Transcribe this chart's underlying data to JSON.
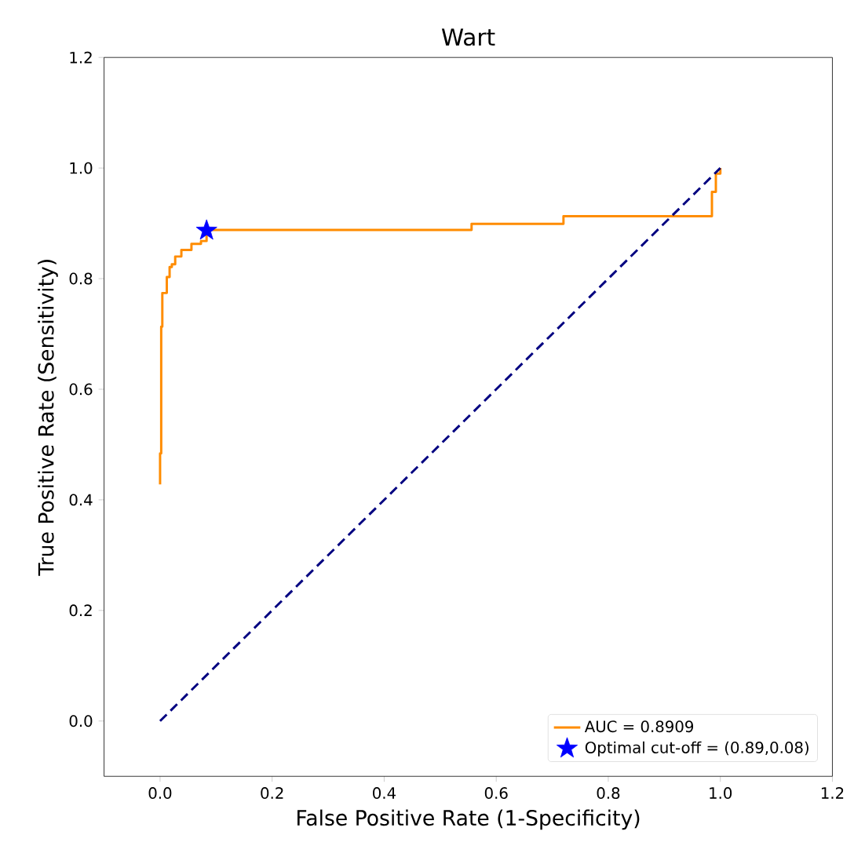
{
  "chart_data": {
    "type": "line",
    "title": "Wart",
    "xlabel": "False Positive Rate (1-Specificity)",
    "ylabel": "True Positive Rate (Sensitivity)",
    "xlim": [
      -0.1,
      1.2
    ],
    "ylim": [
      -0.1,
      1.2
    ],
    "xticks": [
      {
        "value": 0,
        "label": "0.0"
      },
      {
        "value": 0.2,
        "label": "0.2"
      },
      {
        "value": 0.4,
        "label": "0.4"
      },
      {
        "value": 0.6,
        "label": "0.6"
      },
      {
        "value": 0.8,
        "label": "0.8"
      },
      {
        "value": 1,
        "label": "1.0"
      },
      {
        "value": 1.2,
        "label": "1.2"
      }
    ],
    "yticks": [
      {
        "value": 0,
        "label": "0.0"
      },
      {
        "value": 0.2,
        "label": "0.2"
      },
      {
        "value": 0.4,
        "label": "0.4"
      },
      {
        "value": 0.6,
        "label": "0.6"
      },
      {
        "value": 0.8,
        "label": "0.8"
      },
      {
        "value": 1,
        "label": "1.0"
      },
      {
        "value": 1.2,
        "label": "1.2"
      }
    ],
    "grid": false,
    "legend": "bottom right",
    "series": [
      {
        "name": "AUC = 0.8909",
        "color": "#ff8c00",
        "line_style": "solid",
        "marker": "none",
        "x": [
          0,
          0,
          0.002,
          0.002,
          0.004,
          0.004,
          0.012,
          0.012,
          0.017,
          0.017,
          0.021,
          0.021,
          0.027,
          0.027,
          0.038,
          0.038,
          0.056,
          0.056,
          0.073,
          0.073,
          0.083,
          0.083,
          0.556,
          0.556,
          0.72,
          0.72,
          0.985,
          0.985,
          0.992,
          0.992,
          1,
          1
        ],
        "values": [
          0.428,
          0.484,
          0.484,
          0.713,
          0.713,
          0.774,
          0.774,
          0.803,
          0.803,
          0.821,
          0.821,
          0.826,
          0.826,
          0.84,
          0.84,
          0.852,
          0.852,
          0.863,
          0.863,
          0.868,
          0.868,
          0.888,
          0.888,
          0.899,
          0.899,
          0.913,
          0.913,
          0.957,
          0.957,
          0.99,
          0.99,
          1
        ]
      },
      {
        "color": "#000080",
        "line_style": "dashed",
        "marker": "none",
        "x": [
          0,
          1
        ],
        "values": [
          0,
          1
        ]
      },
      {
        "name": "Optimal cut-off = (0.89,0.08)",
        "type": "scatter",
        "color": "#0000ff",
        "marker": "star",
        "x": [
          0.083
        ],
        "values": [
          0.887
        ]
      }
    ]
  }
}
